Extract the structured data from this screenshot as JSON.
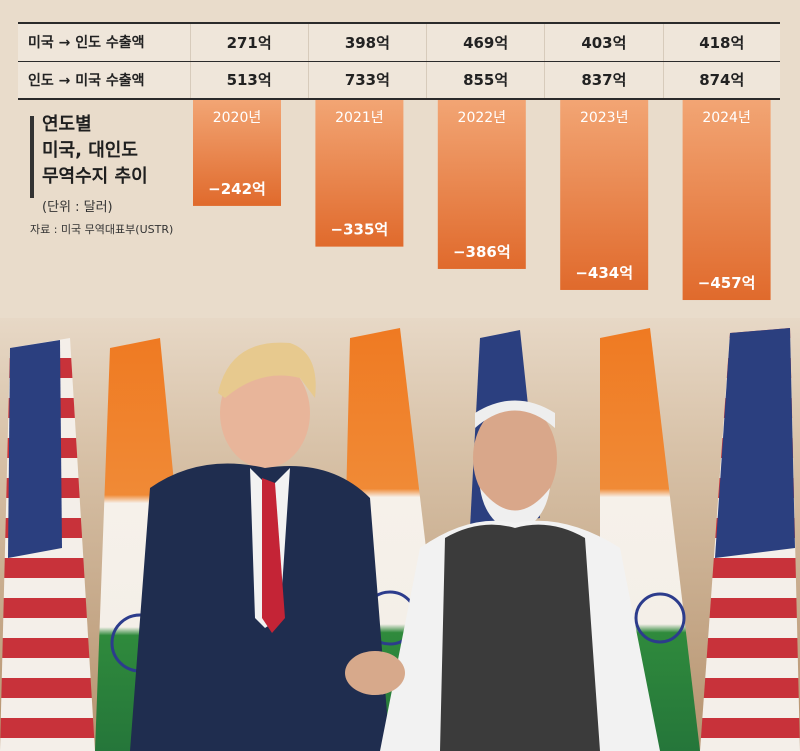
{
  "table": {
    "rows": [
      {
        "label": "미국 → 인도 수출액",
        "values": [
          "271억",
          "398억",
          "469억",
          "403억",
          "418억"
        ]
      },
      {
        "label": "인도 → 미국 수출액",
        "values": [
          "513억",
          "733억",
          "855억",
          "837억",
          "874억"
        ]
      }
    ]
  },
  "chart_data": {
    "type": "bar",
    "title": "연도별\n미국, 대인도\n무역수지 추이",
    "unit": "(단위 : 달러)",
    "source": "자료 : 미국 무역대표부(USTR)",
    "categories": [
      "2020년",
      "2021년",
      "2022년",
      "2023년",
      "2024년"
    ],
    "values": [
      -242,
      -335,
      -386,
      -434,
      -457
    ],
    "value_labels": [
      "−242억",
      "−335억",
      "−386억",
      "−434억",
      "−457억"
    ],
    "bar_color": "#e06a2c",
    "bar_color_light": "#f2a574"
  },
  "colors": {
    "background": "#e9dccb",
    "table_bg": "#efe6da"
  }
}
